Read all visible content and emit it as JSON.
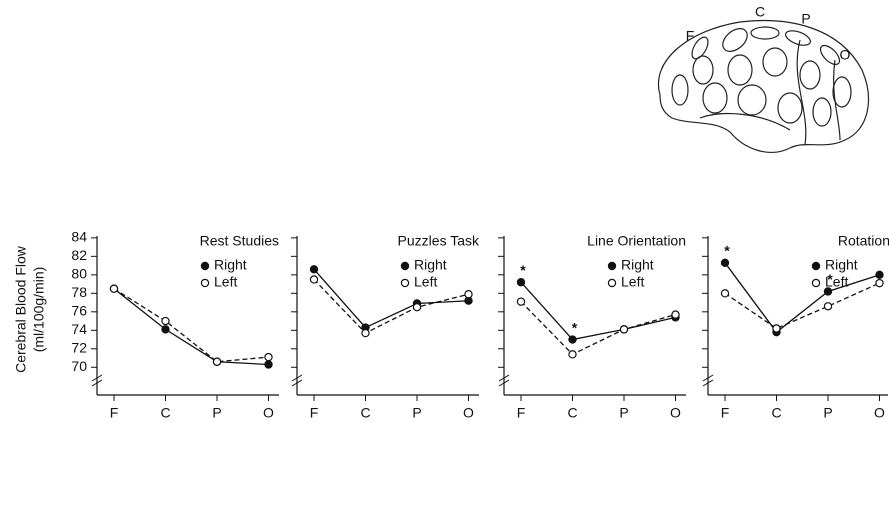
{
  "diagram": {
    "labels": [
      "F",
      "C",
      "P",
      "O"
    ]
  },
  "chart_data": [
    {
      "type": "line",
      "title": "Rest Studies",
      "ylabel": [
        "Cerebral Blood Flow",
        "(ml/100g/min)"
      ],
      "categories": [
        "F",
        "C",
        "P",
        "O"
      ],
      "series": [
        {
          "name": "Right",
          "color": "#111111",
          "marker": "filled",
          "dash": false,
          "values": [
            78.5,
            74.1,
            70.6,
            70.3
          ]
        },
        {
          "name": "Left",
          "color": "#111111",
          "marker": "open",
          "dash": true,
          "values": [
            78.5,
            75.0,
            70.6,
            71.1
          ]
        }
      ],
      "ylim": [
        68.3,
        84.2
      ],
      "yticks": [
        70,
        72,
        74,
        76,
        78,
        80,
        82,
        84
      ],
      "tick_labels": true,
      "annotations": []
    },
    {
      "type": "line",
      "title": "Puzzles Task",
      "categories": [
        "F",
        "C",
        "P",
        "O"
      ],
      "series": [
        {
          "name": "Right",
          "color": "#111111",
          "marker": "filled",
          "dash": false,
          "values": [
            80.6,
            74.3,
            76.9,
            77.2
          ]
        },
        {
          "name": "Left",
          "color": "#111111",
          "marker": "open",
          "dash": true,
          "values": [
            79.5,
            73.7,
            76.5,
            77.9
          ]
        }
      ],
      "ylim": [
        68.3,
        84.2
      ],
      "yticks": [
        70,
        72,
        74,
        76,
        78,
        80,
        82,
        84
      ],
      "tick_labels": false,
      "annotations": []
    },
    {
      "type": "line",
      "title": "Line Orientation",
      "categories": [
        "F",
        "C",
        "P",
        "O"
      ],
      "series": [
        {
          "name": "Right",
          "color": "#111111",
          "marker": "filled",
          "dash": false,
          "values": [
            79.2,
            73.0,
            74.1,
            75.4
          ]
        },
        {
          "name": "Left",
          "color": "#111111",
          "marker": "open",
          "dash": true,
          "values": [
            77.1,
            71.4,
            74.1,
            75.7
          ]
        }
      ],
      "ylim": [
        68.3,
        84.2
      ],
      "yticks": [
        70,
        72,
        74,
        76,
        78,
        80,
        82,
        84
      ],
      "tick_labels": false,
      "annotations": [
        {
          "text": "*",
          "category": "F"
        },
        {
          "text": "*",
          "category": "C"
        }
      ]
    },
    {
      "type": "line",
      "title": "Rotation",
      "categories": [
        "F",
        "C",
        "P",
        "O"
      ],
      "series": [
        {
          "name": "Right",
          "color": "#111111",
          "marker": "filled",
          "dash": false,
          "values": [
            81.3,
            73.8,
            78.2,
            80.0
          ]
        },
        {
          "name": "Left",
          "color": "#111111",
          "marker": "open",
          "dash": true,
          "values": [
            78.0,
            74.2,
            76.6,
            79.1
          ]
        }
      ],
      "ylim": [
        68.3,
        84.2
      ],
      "yticks": [
        70,
        72,
        74,
        76,
        78,
        80,
        82,
        84
      ],
      "tick_labels": false,
      "annotations": [
        {
          "text": "*",
          "category": "F"
        },
        {
          "text": "*",
          "category": "P"
        }
      ]
    }
  ]
}
